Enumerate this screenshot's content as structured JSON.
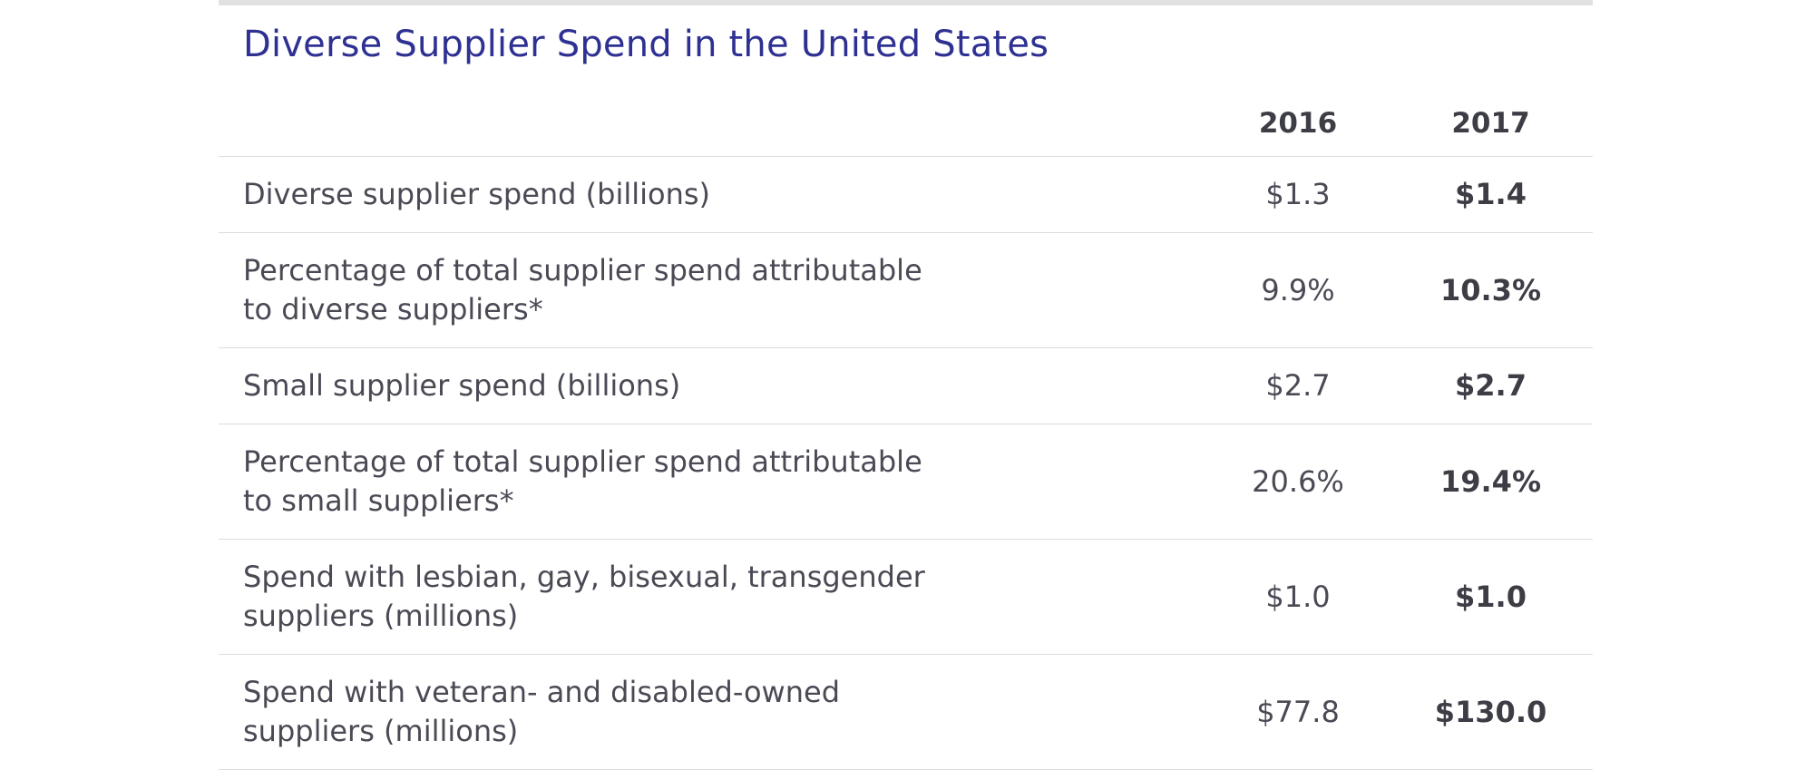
{
  "title": "Diverse Supplier Spend in the United States",
  "table": {
    "headers": [
      "",
      "2016",
      "2017"
    ],
    "rows": [
      {
        "label": "Diverse supplier spend (billions)",
        "v2016": "$1.3",
        "v2017": "$1.4"
      },
      {
        "label": "Percentage of total supplier spend attributable\nto diverse suppliers*",
        "v2016": "9.9%",
        "v2017": "10.3%"
      },
      {
        "label": "Small supplier spend (billions)",
        "v2016": "$2.7",
        "v2017": "$2.7"
      },
      {
        "label": "Percentage of total supplier spend attributable\nto small suppliers*",
        "v2016": "20.6%",
        "v2017": "19.4%"
      },
      {
        "label": "Spend with lesbian, gay, bisexual, transgender\nsuppliers (millions)",
        "v2016": "$1.0",
        "v2017": "$1.0"
      },
      {
        "label": "Spend with veteran- and disabled-owned\nsuppliers (millions)",
        "v2016": "$77.8",
        "v2017": "$130.0"
      }
    ]
  },
  "colors": {
    "title": "#2e3192",
    "text": "#4a4a55",
    "rule": "#dcdcdc",
    "top_border": "#e1e1e1"
  }
}
